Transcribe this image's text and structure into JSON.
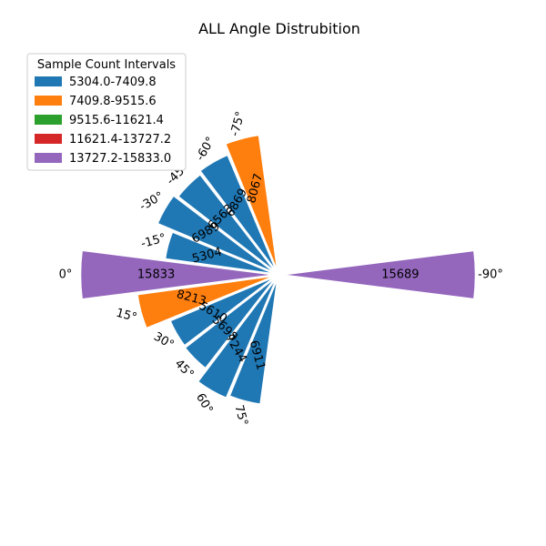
{
  "chart_data": {
    "type": "polar-bar",
    "title": "ALL Angle Distrubition",
    "legend": {
      "title": "Sample Count Intervals",
      "placement": "top-left",
      "entries": [
        {
          "label": "5304.0-7409.8",
          "color": "#1f77b4"
        },
        {
          "label": "7409.8-9515.6",
          "color": "#ff7f0e"
        },
        {
          "label": "9515.6-11621.4",
          "color": "#2ca02c"
        },
        {
          "label": "11621.4-13727.2",
          "color": "#d62728"
        },
        {
          "label": "13727.2-15833.0",
          "color": "#9467bd"
        }
      ]
    },
    "categories": [
      "0°",
      "-15°",
      "-30°",
      "-45°",
      "-60°",
      "-75°",
      "-90°",
      "75°",
      "60°",
      "45°",
      "30°",
      "15°"
    ],
    "angles_deg": [
      0,
      -15,
      -30,
      -45,
      -60,
      -75,
      -90,
      75,
      60,
      45,
      30,
      15
    ],
    "values": [
      15833,
      5304,
      6989,
      6563,
      6869,
      8067,
      15689,
      6911,
      7244,
      5698,
      5610,
      8213
    ],
    "value_labels": [
      "15833",
      "5304",
      "6989",
      "6563",
      "6869",
      "8067",
      "15689",
      "6911",
      "7244",
      "5698",
      "5610",
      "8213"
    ],
    "interval_index": [
      4,
      0,
      0,
      0,
      0,
      1,
      4,
      0,
      0,
      0,
      0,
      1
    ],
    "rmax": 15833
  }
}
